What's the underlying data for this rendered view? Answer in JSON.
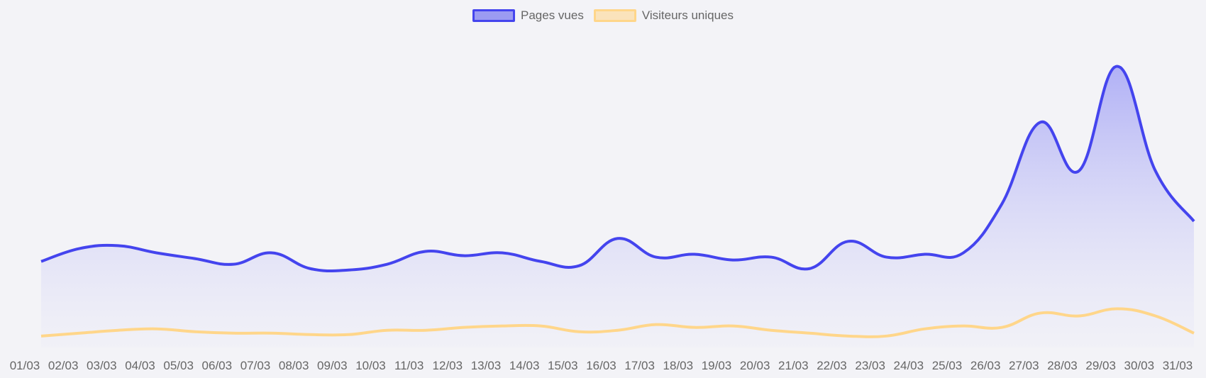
{
  "chart_data": {
    "type": "line",
    "categories": [
      "01/03",
      "02/03",
      "03/03",
      "04/03",
      "05/03",
      "06/03",
      "07/03",
      "08/03",
      "09/03",
      "10/03",
      "11/03",
      "12/03",
      "13/03",
      "14/03",
      "15/03",
      "16/03",
      "17/03",
      "18/03",
      "19/03",
      "20/03",
      "21/03",
      "22/03",
      "23/03",
      "24/03",
      "25/03",
      "26/03",
      "27/03",
      "28/03",
      "29/03",
      "30/03",
      "31/03"
    ],
    "series": [
      {
        "name": "Pages vues",
        "color": "#4444ee",
        "fill": true,
        "values": [
          60,
          69,
          71,
          66,
          62,
          58,
          66,
          55,
          54,
          58,
          67,
          64,
          66,
          60,
          57,
          76,
          63,
          65,
          61,
          63,
          55,
          74,
          63,
          65,
          66,
          100,
          157,
          123,
          196,
          123,
          88
        ]
      },
      {
        "name": "Visiteurs uniques",
        "color": "#ffd68a",
        "fill": false,
        "values": [
          8,
          10,
          12,
          13,
          11,
          10,
          10,
          9,
          9,
          12,
          12,
          14,
          15,
          15,
          11,
          12,
          16,
          14,
          15,
          12,
          10,
          8,
          8,
          13,
          15,
          14,
          24,
          22,
          27,
          22,
          10
        ]
      }
    ],
    "title": "",
    "xlabel": "",
    "ylabel": "",
    "ylim": [
      0,
      220
    ],
    "grid": false,
    "legend_position": "top-center"
  }
}
